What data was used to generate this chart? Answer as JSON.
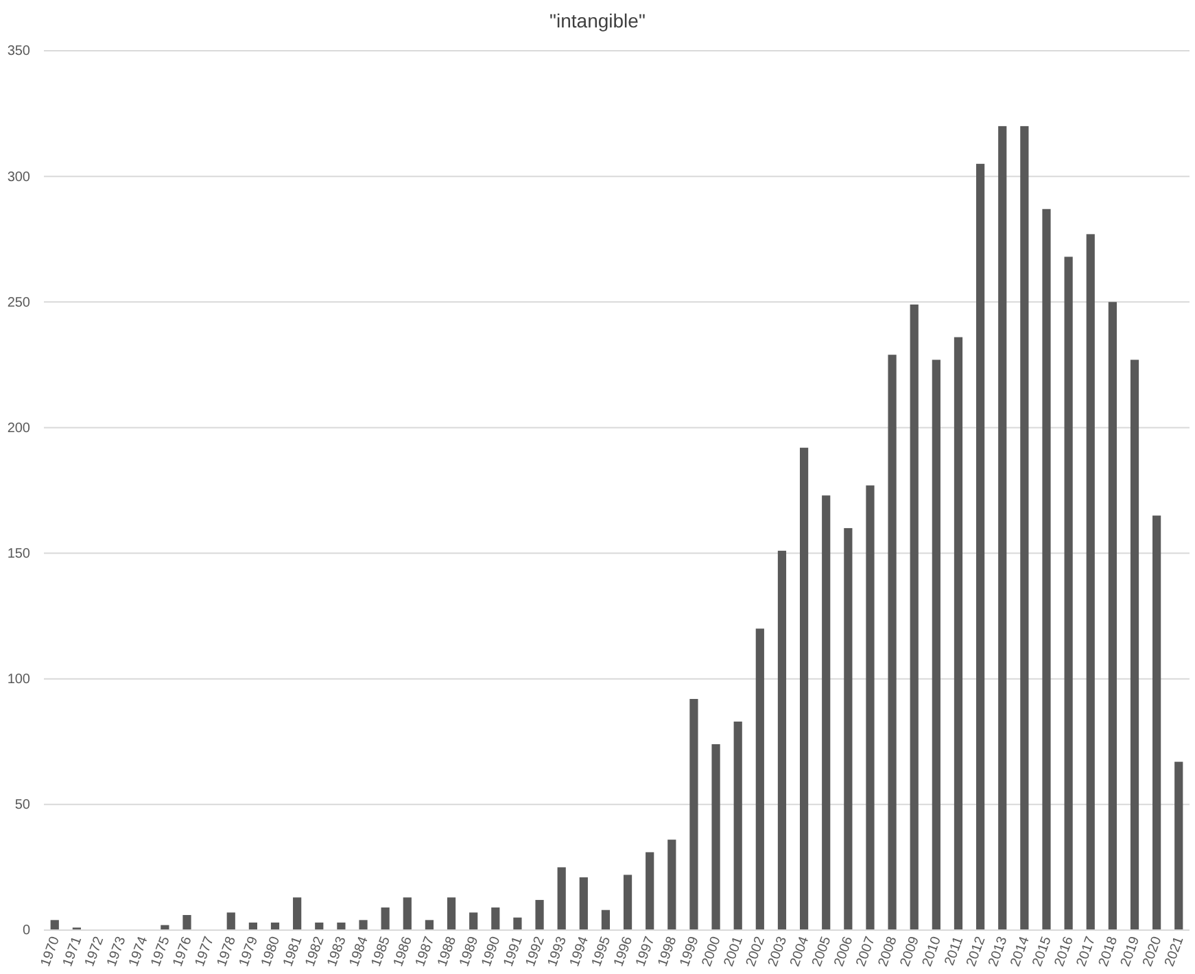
{
  "chart_data": {
    "type": "bar",
    "title": "\"intangible\"",
    "categories": [
      "1970",
      "1971",
      "1972",
      "1973",
      "1974",
      "1975",
      "1976",
      "1977",
      "1978",
      "1979",
      "1980",
      "1981",
      "1982",
      "1983",
      "1984",
      "1985",
      "1986",
      "1987",
      "1988",
      "1989",
      "1990",
      "1991",
      "1992",
      "1993",
      "1994",
      "1995",
      "1996",
      "1997",
      "1998",
      "1999",
      "2000",
      "2001",
      "2002",
      "2003",
      "2004",
      "2005",
      "2006",
      "2007",
      "2008",
      "2009",
      "2010",
      "2011",
      "2012",
      "2013",
      "2014",
      "2015",
      "2016",
      "2017",
      "2018",
      "2019",
      "2020",
      "2021"
    ],
    "values": [
      4,
      1,
      0,
      0,
      0,
      2,
      6,
      0,
      7,
      3,
      3,
      13,
      3,
      3,
      4,
      9,
      13,
      4,
      13,
      7,
      9,
      5,
      12,
      25,
      21,
      8,
      22,
      31,
      36,
      92,
      74,
      83,
      120,
      151,
      192,
      173,
      160,
      177,
      229,
      249,
      227,
      236,
      305,
      320,
      320,
      287,
      268,
      277,
      250,
      227,
      165,
      67
    ],
    "color": "#595959",
    "ylim": [
      0,
      350
    ],
    "yticks": [
      0,
      50,
      100,
      150,
      200,
      250,
      300,
      350
    ],
    "grid": "y"
  }
}
